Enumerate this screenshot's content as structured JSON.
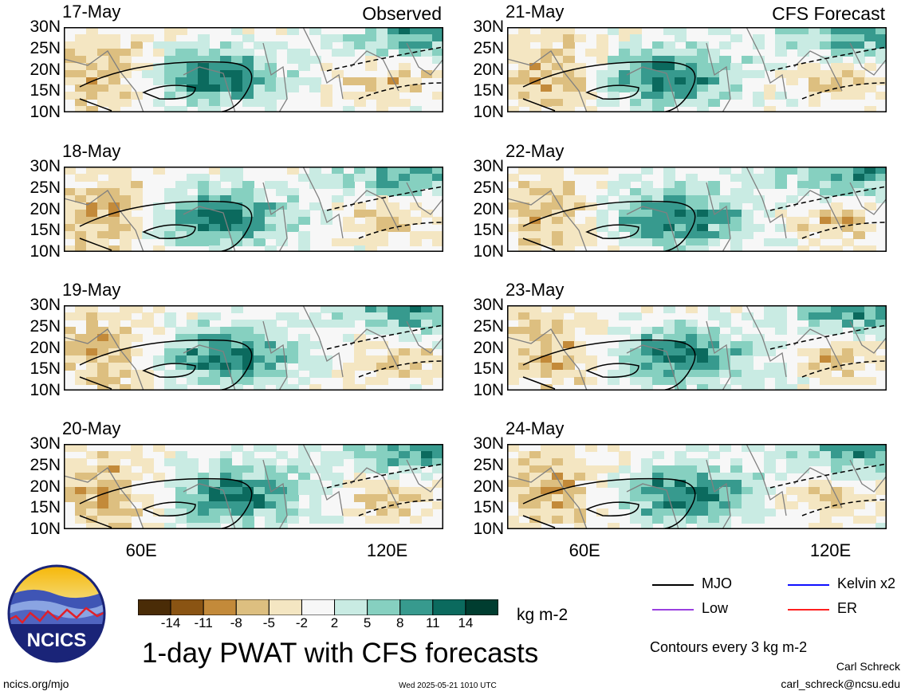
{
  "panels": [
    {
      "date": "17-May",
      "tag": "Observed"
    },
    {
      "date": "18-May",
      "tag": ""
    },
    {
      "date": "19-May",
      "tag": ""
    },
    {
      "date": "20-May",
      "tag": ""
    },
    {
      "date": "21-May",
      "tag": "CFS Forecast"
    },
    {
      "date": "22-May",
      "tag": ""
    },
    {
      "date": "23-May",
      "tag": ""
    },
    {
      "date": "24-May",
      "tag": ""
    }
  ],
  "lat_labels": [
    "30N",
    "25N",
    "20N",
    "15N",
    "10N"
  ],
  "lon_labels": [
    "60E",
    "120E"
  ],
  "colorbar": {
    "ticks": [
      "-14",
      "-11",
      "-8",
      "-5",
      "-2",
      "2",
      "5",
      "8",
      "11",
      "14"
    ],
    "colors": [
      "#4a2c07",
      "#8a5413",
      "#c38a3a",
      "#ddbf80",
      "#f4e6c2",
      "#f7f7f7",
      "#c9ebe3",
      "#86d0c0",
      "#379a8e",
      "#0b6a5e",
      "#003d30"
    ],
    "unit": "kg m-2"
  },
  "legend": [
    {
      "label": "MJO",
      "color": "#000000"
    },
    {
      "label": "Kelvin x2",
      "color": "#1010ff"
    },
    {
      "label": "Low",
      "color": "#9a40e0"
    },
    {
      "label": "ER",
      "color": "#ff2020"
    }
  ],
  "contour_note": "Contours every 3 kg m-2",
  "title": "1-day PWAT with CFS forecasts",
  "logo_text": "NCICS",
  "footer": {
    "site": "ncics.org/mjo",
    "timestamp": "Wed 2025-05-21 1010 UTC",
    "author": "Carl Schreck",
    "email": "carl_schreck@ncsu.edu"
  }
}
